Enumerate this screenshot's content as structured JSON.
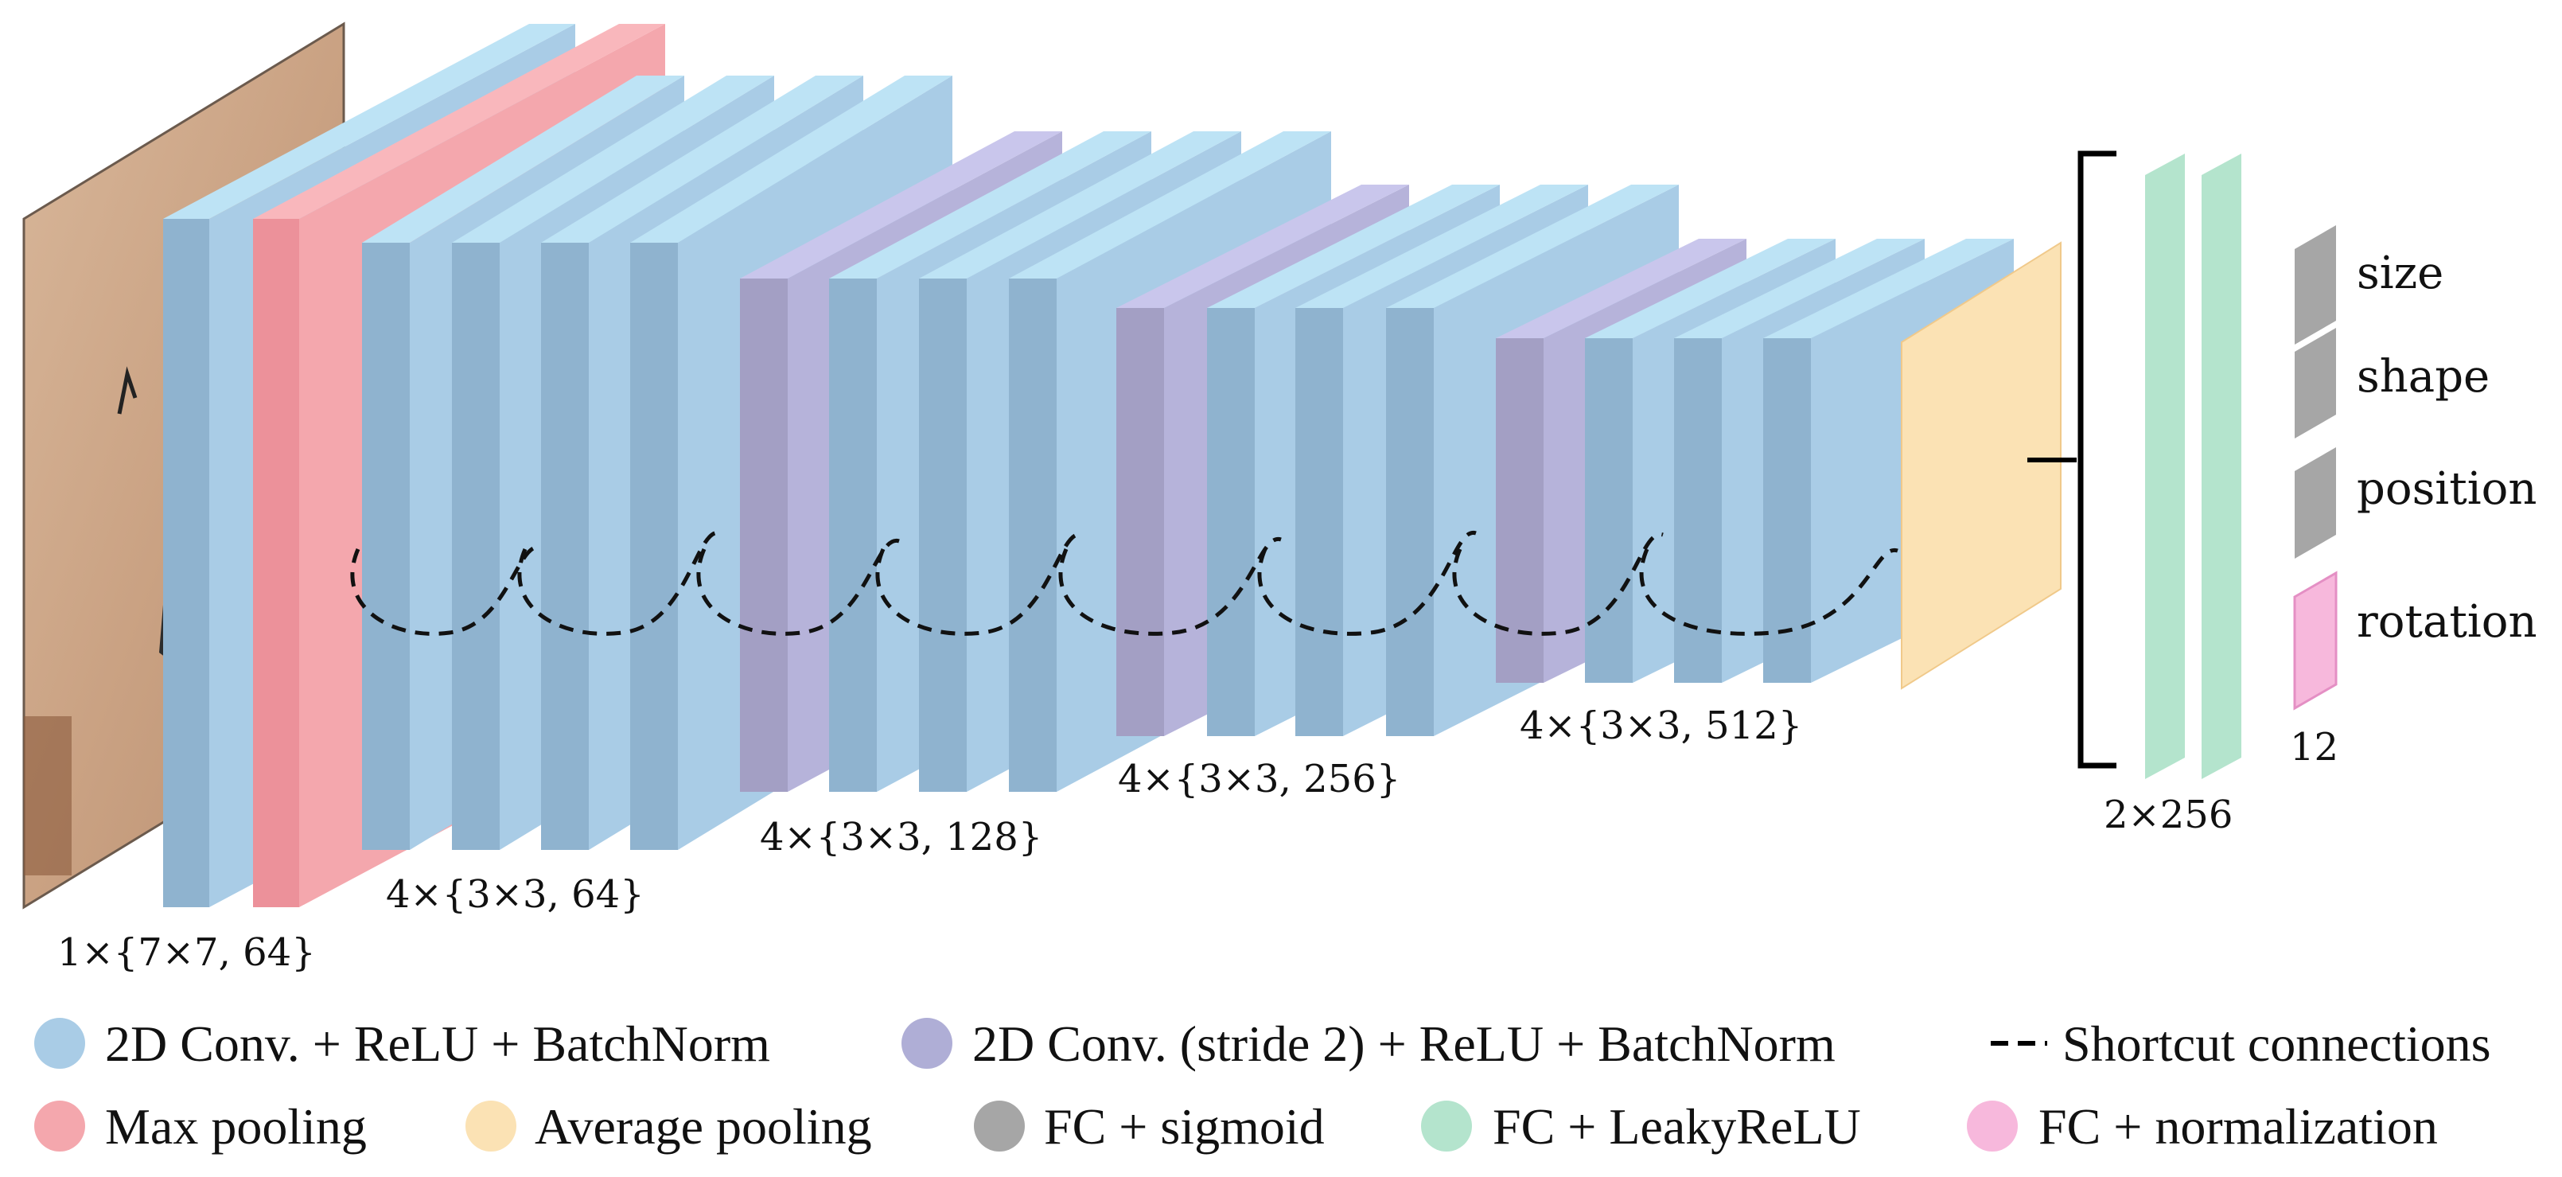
{
  "colors": {
    "conv": "#a9cce6",
    "conv_stride2": "#afaed6",
    "max_pool": "#f4a7ad",
    "avg_pool": "#fbe2b4",
    "fc_sigmoid": "#a6a6a6",
    "fc_leaky": "#b4e4cd",
    "fc_norm": "#f7b8dc"
  },
  "stage_labels": {
    "stage0": "1×{7×7, 64}",
    "stage1": "4×{3×3, 64}",
    "stage2": "4×{3×3, 128}",
    "stage3": "4×{3×3, 256}",
    "stage4": "4×{3×3, 512}",
    "fc": "2×256",
    "out_size": "12"
  },
  "outputs": [
    "size",
    "shape",
    "position",
    "rotation"
  ],
  "legend": [
    {
      "label": "2D Conv. + ReLU + BatchNorm",
      "color": "#a9cce6",
      "icon": "conv-icon"
    },
    {
      "label": "2D Conv. (stride 2) + ReLU + BatchNorm",
      "color": "#afaed6",
      "icon": "conv-stride2-icon"
    },
    {
      "label": "Shortcut connections",
      "color": "#000000",
      "icon": "dashed-line-icon"
    },
    {
      "label": "Max pooling",
      "color": "#f4a7ad",
      "icon": "max-pool-icon"
    },
    {
      "label": "Average pooling",
      "color": "#fbe2b4",
      "icon": "avg-pool-icon"
    },
    {
      "label": "FC + sigmoid",
      "color": "#a6a6a6",
      "icon": "fc-sigmoid-icon"
    },
    {
      "label": "FC + LeakyReLU",
      "color": "#b4e4cd",
      "icon": "fc-leaky-icon"
    },
    {
      "label": "FC + normalization",
      "color": "#f7b8dc",
      "icon": "fc-norm-icon"
    }
  ]
}
